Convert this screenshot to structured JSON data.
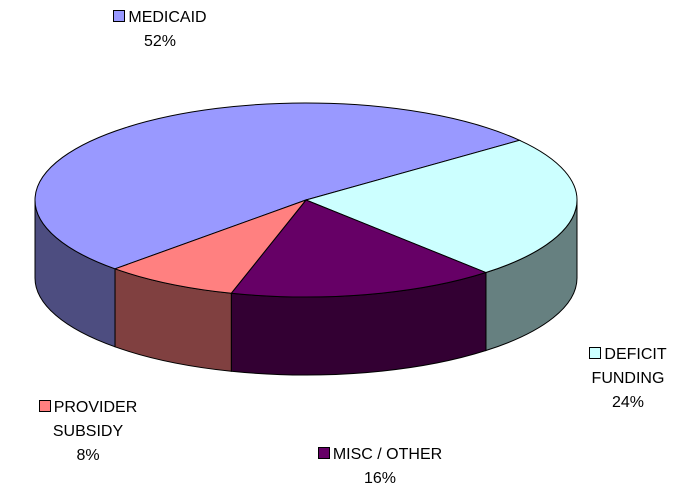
{
  "chart_data": {
    "type": "pie",
    "categories": [
      "MEDICAID",
      "DEFICIT FUNDING",
      "MISC / OTHER",
      "PROVIDER SUBSIDY"
    ],
    "values": [
      52,
      24,
      16,
      8
    ],
    "value_labels": [
      "52%",
      "24%",
      "16%",
      "8%"
    ],
    "colors": [
      "#9999ff",
      "#ccffff",
      "#660066",
      "#ff8080"
    ]
  }
}
